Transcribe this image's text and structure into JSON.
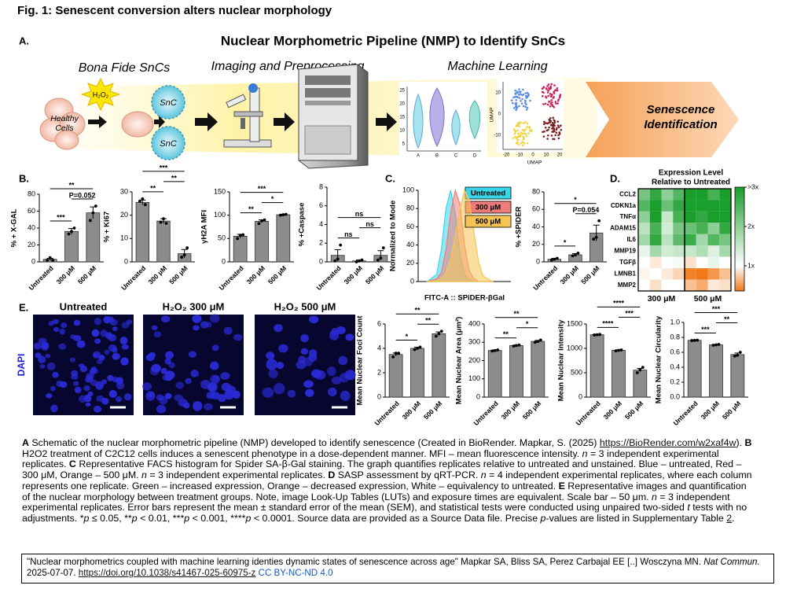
{
  "figure_title": "Fig. 1: Senescent conversion alters nuclear morphology",
  "panel_a": {
    "label": "A.",
    "title": "Nuclear Morphometric Pipeline (NMP) to Identify SnCs",
    "stages": [
      "Bona Fide SnCs",
      "Imaging and Preprocessing",
      "Machine Learning"
    ],
    "h2o2": "H₂O₂",
    "healthy": [
      "Healthy",
      "Cells"
    ],
    "snc": [
      "SnC",
      "SnC"
    ],
    "output": [
      "Senescence",
      "Identification"
    ],
    "violin": {
      "yticks": [
        25,
        20,
        15,
        10,
        5
      ],
      "categories": [
        "A",
        "B",
        "C",
        "D"
      ]
    },
    "umap": {
      "ylabel": "UMAP",
      "xlabel": "UMAP",
      "yticks": [
        10,
        0,
        -10
      ],
      "xticks": [
        -20,
        -10,
        0,
        10,
        20
      ]
    }
  },
  "chart_data": [
    {
      "type": "bar",
      "panel": "B.",
      "ylabel": "% + X-GAL",
      "categories": [
        "Untreated",
        "300 μM",
        "500 μM"
      ],
      "values": [
        3,
        36,
        58
      ],
      "errors": [
        1.2,
        3.5,
        7
      ],
      "points": [
        [
          2,
          5,
          2
        ],
        [
          33,
          36,
          40
        ],
        [
          49,
          58,
          66
        ]
      ],
      "ylim": [
        0,
        80
      ],
      "yticks": [
        0,
        20,
        40,
        60,
        80
      ],
      "color": "#8c8c8c",
      "brackets": [
        {
          "pair": [
            0,
            1
          ],
          "label": "***"
        },
        {
          "pair": [
            1,
            2
          ],
          "label": "P=0.052"
        },
        {
          "pair": [
            0,
            2
          ],
          "label": "**"
        }
      ]
    },
    {
      "type": "bar",
      "ylabel": "% + Ki67",
      "categories": [
        "Untreated",
        "300 μM",
        "500 μM"
      ],
      "values": [
        25.5,
        17.5,
        3.5
      ],
      "errors": [
        1,
        1,
        1.8
      ],
      "points": [
        [
          26,
          27,
          24.5
        ],
        [
          17,
          18.5,
          16.5
        ],
        [
          2,
          3,
          6
        ]
      ],
      "ylim": [
        0,
        30
      ],
      "yticks": [
        0,
        10,
        20,
        30
      ],
      "color": "#8c8c8c",
      "brackets": [
        {
          "pair": [
            0,
            1
          ],
          "label": "**"
        },
        {
          "pair": [
            1,
            2
          ],
          "label": "**"
        },
        {
          "pair": [
            0,
            2
          ],
          "label": "***"
        }
      ]
    },
    {
      "type": "bar",
      "ylabel": "γH2A MFI",
      "categories": [
        "Untreated",
        "300 μM",
        "500 μM"
      ],
      "values": [
        55,
        87,
        101
      ],
      "errors": [
        4,
        3,
        1
      ],
      "points": [
        [
          50,
          57,
          58
        ],
        [
          82,
          88,
          90
        ],
        [
          100,
          101,
          102
        ]
      ],
      "ylim": [
        0,
        150
      ],
      "yticks": [
        0,
        50,
        100,
        150
      ],
      "color": "#8c8c8c",
      "brackets": [
        {
          "pair": [
            0,
            1
          ],
          "label": "**"
        },
        {
          "pair": [
            1,
            2
          ],
          "label": "*"
        },
        {
          "pair": [
            0,
            2
          ],
          "label": "***"
        }
      ]
    },
    {
      "type": "bar",
      "ylabel": "% +Caspase",
      "categories": [
        "Untreated",
        "300 μM",
        "500 μM"
      ],
      "values": [
        0.7,
        0.1,
        0.7
      ],
      "errors": [
        0.6,
        0.1,
        0.5
      ],
      "points": [
        [
          0.1,
          0.3,
          1.8
        ],
        [
          0,
          0.1,
          0.2
        ],
        [
          0.2,
          0.4,
          1.5
        ]
      ],
      "ylim": [
        0,
        8
      ],
      "yticks": [
        0,
        2,
        4,
        6,
        8
      ],
      "color": "#8c8c8c",
      "brackets": [
        {
          "pair": [
            0,
            1
          ],
          "label": "ns"
        },
        {
          "pair": [
            1,
            2
          ],
          "label": "ns"
        },
        {
          "pair": [
            0,
            2
          ],
          "label": "ns"
        }
      ]
    },
    {
      "type": "histogram-curve",
      "panel": "C.",
      "ylabel": "Normalized to Mode",
      "xlabel": "FITC-A :: SPiDER-βGal",
      "x": [
        -0.5,
        0,
        0.25,
        0.5,
        0.75,
        1,
        1.25,
        1.5,
        1.75,
        2,
        2.25,
        2.5,
        3
      ],
      "series": [
        {
          "name": "Untreated",
          "color": "#38d6e8",
          "values": [
            0,
            8,
            35,
            80,
            100,
            75,
            30,
            8,
            2,
            0,
            0,
            0,
            0
          ]
        },
        {
          "name": "300 μM",
          "color": "#f07b7b",
          "values": [
            0,
            3,
            10,
            35,
            75,
            100,
            85,
            40,
            12,
            3,
            0,
            0,
            0
          ]
        },
        {
          "name": "500 μM",
          "color": "#f6c453",
          "values": [
            0,
            1,
            3,
            10,
            25,
            50,
            80,
            100,
            90,
            55,
            22,
            6,
            0
          ]
        }
      ],
      "xlim": [
        -1,
        4
      ],
      "ylim": [
        0,
        100
      ],
      "yticks": [
        0,
        20,
        40,
        60,
        80,
        100
      ]
    },
    {
      "type": "bar",
      "ylabel": "% +SPiDER",
      "categories": [
        "Untreated",
        "300 μM",
        "500 μM"
      ],
      "values": [
        3,
        8,
        33
      ],
      "errors": [
        1,
        1.5,
        9
      ],
      "points": [
        [
          2,
          3,
          4
        ],
        [
          7,
          8,
          10
        ],
        [
          26,
          28,
          47
        ]
      ],
      "ylim": [
        0,
        80
      ],
      "yticks": [
        0,
        20,
        40,
        60,
        80
      ],
      "color": "#8c8c8c",
      "brackets": [
        {
          "pair": [
            0,
            1
          ],
          "label": "*"
        },
        {
          "pair": [
            1,
            2
          ],
          "label": "P=0.054"
        },
        {
          "pair": [
            0,
            2
          ],
          "label": "*"
        }
      ]
    },
    {
      "type": "heatmap",
      "panel": "D.",
      "title": [
        "Expression Level",
        "Relative to Untreated"
      ],
      "rows": [
        "CCL2",
        "CDKN1a",
        "TNFα",
        "ADAM15",
        "IL6",
        "MMP19",
        "TGFβ",
        "LMNB1",
        "MMP2"
      ],
      "groups": [
        "300 μM",
        "500 μM"
      ],
      "columns_per_group": 4,
      "values": [
        [
          2.2,
          2.8,
          2.0,
          2.5,
          3,
          3,
          2.6,
          3
        ],
        [
          2.5,
          3,
          2.3,
          2.8,
          3,
          3,
          3,
          3
        ],
        [
          2.0,
          3,
          1.5,
          2.6,
          3,
          2.8,
          3,
          3
        ],
        [
          1.6,
          2.6,
          1.4,
          2.2,
          2.3,
          2.6,
          2.0,
          2.8
        ],
        [
          1.8,
          2.8,
          1.6,
          2.4,
          2.7,
          1.8,
          2.5,
          2.2
        ],
        [
          1.2,
          1.8,
          1.4,
          1.5,
          1.5,
          1.7,
          1.3,
          1.8
        ],
        [
          1.0,
          0.9,
          1.0,
          1.1,
          0.85,
          1.0,
          1.2,
          1.0
        ],
        [
          0.95,
          1.0,
          0.9,
          0.8,
          0.4,
          0.3,
          0.5,
          0.7
        ],
        [
          1.0,
          0.85,
          1.0,
          1.0,
          0.7,
          0.6,
          0.9,
          0.85
        ]
      ],
      "zlim": [
        0.36,
        3
      ],
      "colors": {
        "low": "#f07a1a",
        "mid": "#ffffff",
        "high": "#1a9e2c"
      },
      "zticks": [
        {
          "value": 3,
          "label": ">3x"
        },
        {
          "value": 2,
          "label": "2x"
        },
        {
          "value": 1,
          "label": "1x"
        }
      ]
    },
    {
      "type": "bar",
      "ylabel": "Mean Nuclear Foci Count",
      "categories": [
        "Untreated",
        "300 μM",
        "500 μM"
      ],
      "values": [
        3.5,
        4.0,
        5.2
      ],
      "errors": [
        0.12,
        0.1,
        0.15
      ],
      "points": [
        [
          3.3,
          3.6,
          3.6
        ],
        [
          3.9,
          4.0,
          4.1
        ],
        [
          5.0,
          5.2,
          5.4
        ]
      ],
      "ylim": [
        0,
        6
      ],
      "yticks": [
        0,
        2,
        4,
        6
      ],
      "color": "#8c8c8c",
      "brackets": [
        {
          "pair": [
            0,
            1
          ],
          "label": "*"
        },
        {
          "pair": [
            1,
            2
          ],
          "label": "**"
        },
        {
          "pair": [
            0,
            2
          ],
          "label": "**"
        }
      ]
    },
    {
      "type": "bar",
      "ylabel": "Mean Nuclear Area (μm²)",
      "categories": [
        "Untreated",
        "300 μM",
        "500 μM"
      ],
      "values": [
        255,
        282,
        305
      ],
      "errors": [
        3,
        3,
        5
      ],
      "points": [
        [
          252,
          255,
          258
        ],
        [
          279,
          282,
          285
        ],
        [
          300,
          305,
          312
        ]
      ],
      "ylim": [
        0,
        400
      ],
      "yticks": [
        0,
        100,
        200,
        300,
        400
      ],
      "color": "#8c8c8c",
      "brackets": [
        {
          "pair": [
            0,
            1
          ],
          "label": "**"
        },
        {
          "pair": [
            1,
            2
          ],
          "label": "*"
        },
        {
          "pair": [
            0,
            2
          ],
          "label": "**"
        }
      ]
    },
    {
      "type": "bar",
      "ylabel": "Mean Nuclear Intensity",
      "categories": [
        "Untreated",
        "300 μM",
        "500 μM"
      ],
      "values": [
        1280,
        960,
        555
      ],
      "errors": [
        5,
        8,
        35
      ],
      "points": [
        [
          1275,
          1280,
          1285
        ],
        [
          950,
          960,
          968
        ],
        [
          500,
          560,
          610
        ]
      ],
      "ylim": [
        0,
        1500
      ],
      "yticks": [
        0,
        500,
        1000,
        1500
      ],
      "color": "#8c8c8c",
      "brackets": [
        {
          "pair": [
            0,
            1
          ],
          "label": "****"
        },
        {
          "pair": [
            1,
            2
          ],
          "label": "***"
        },
        {
          "pair": [
            0,
            2
          ],
          "label": "****"
        }
      ]
    },
    {
      "type": "bar",
      "ylabel": "Mean Nuclear Circularity",
      "categories": [
        "Untreated",
        "300 μM",
        "500 μM"
      ],
      "values": [
        0.76,
        0.7,
        0.57
      ],
      "errors": [
        0.003,
        0.004,
        0.02
      ],
      "points": [
        [
          0.757,
          0.76,
          0.763
        ],
        [
          0.695,
          0.7,
          0.705
        ],
        [
          0.55,
          0.56,
          0.6
        ]
      ],
      "ylim": [
        0,
        1
      ],
      "yticks": [
        {
          "value": 0,
          "label": "0.0"
        },
        0.2,
        0.4,
        0.6,
        0.8,
        {
          "value": 1,
          "label": "1.0"
        }
      ],
      "color": "#8c8c8c",
      "brackets": [
        {
          "pair": [
            0,
            1
          ],
          "label": "***"
        },
        {
          "pair": [
            1,
            2
          ],
          "label": "**"
        },
        {
          "pair": [
            0,
            2
          ],
          "label": "***"
        }
      ]
    }
  ],
  "images": {
    "label": "E.",
    "ylabel": "DAPI",
    "titles": [
      "Untreated",
      "H₂O₂ 300 μM",
      "H₂O₂ 500 μM"
    ]
  },
  "caption": [
    {
      "text": "A",
      "style": "b"
    },
    {
      "text": " Schematic of the nuclear morphometric pipeline (NMP) developed to identify senescence (Created in BioRender. Mapkar, S. (2025) "
    },
    {
      "text": "https://BioRender.com/w2xaf4w",
      "style": "link"
    },
    {
      "text": "). "
    },
    {
      "text": "B",
      "style": "b"
    },
    {
      "text": " H2O2 treatment of C2C12 cells induces a senescent phenotype in a dose-dependent manner. MFI – mean fluorescence intensity. "
    },
    {
      "text": "n",
      "style": "i"
    },
    {
      "text": " = 3 independent experimental replicates. "
    },
    {
      "text": "C",
      "style": "b"
    },
    {
      "text": " Representative FACS histogram for Spider SA-β-Gal staining. The graph quantifies replicates relative to untreated and unstained. Blue – untreated, Red – 300 μM, Orange – 500 μM. "
    },
    {
      "text": "n",
      "style": "i"
    },
    {
      "text": " = 3 independent experimental replicates. "
    },
    {
      "text": "D",
      "style": "b"
    },
    {
      "text": " SASP assessment by qRT-PCR. "
    },
    {
      "text": "n",
      "style": "i"
    },
    {
      "text": " = 4 independent experimental replicates, where each column represents one replicate. Green – increased expression, Orange – decreased expression, White – equivalency to untreated. "
    },
    {
      "text": "E",
      "style": "b"
    },
    {
      "text": " Representative images and quantification of the nuclear morphology between treatment groups. Note, image Look-Up Tables (LUTs) and exposure times are equivalent. Scale bar – 50 μm. "
    },
    {
      "text": "n",
      "style": "i"
    },
    {
      "text": " = 3 independent experimental replicates. Error bars represent the mean ± standard error of the mean (SEM), and statistical tests were conducted using unpaired two-sided "
    },
    {
      "text": "t",
      "style": "i"
    },
    {
      "text": " tests with no adjustments. *"
    },
    {
      "text": "p",
      "style": "i"
    },
    {
      "text": " ≤ 0.05, **"
    },
    {
      "text": "p",
      "style": "i"
    },
    {
      "text": " < 0.01, ***"
    },
    {
      "text": "p",
      "style": "i"
    },
    {
      "text": " < 0.001, ****"
    },
    {
      "text": "p",
      "style": "i"
    },
    {
      "text": " < 0.0001. Source data are provided as a Source Data file. Precise "
    },
    {
      "text": "p",
      "style": "i"
    },
    {
      "text": "-values are listed in Supplementary Table "
    },
    {
      "text": "2",
      "style": "link"
    },
    {
      "text": "."
    }
  ],
  "citation": [
    {
      "text": "\"Nuclear morphometrics coupled with machine learning identies dynamic states of senescence across age\" Mapkar SA, Bliss SA, Perez Carbajal EE [..] Wosczyna MN. "
    },
    {
      "text": "Nat Commun.",
      "style": "i"
    },
    {
      "text": " 2025-07-07. "
    },
    {
      "text": "https://doi.org/10.1038/s41467-025-60975-z",
      "style": "link"
    },
    {
      "text": " "
    },
    {
      "text": "CC BY-NC-ND 4.0",
      "style": "license"
    }
  ]
}
